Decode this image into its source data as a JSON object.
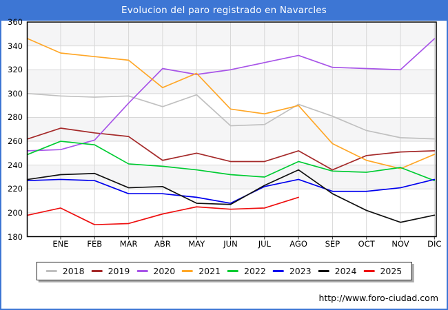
{
  "title": "Evolucion del paro registrado en Navarcles",
  "watermark": "http://www.foro-ciudad.com",
  "colors": {
    "titlebar": "#3d76d4",
    "frame_border": "#3d76d4",
    "grid": "#d8d8d8",
    "band": "#f5f5f6",
    "plot_border": "#000000"
  },
  "chart_data": {
    "type": "line",
    "title": "Evolucion del paro registrado en Navarcles",
    "xlabel": "",
    "ylabel": "",
    "ylim": [
      180,
      360
    ],
    "y_ticks": [
      360,
      340,
      320,
      300,
      280,
      260,
      240,
      220,
      200,
      180
    ],
    "x_labels": [
      "ENE",
      "FEB",
      "MAR",
      "ABR",
      "MAY",
      "JUN",
      "JUL",
      "AGO",
      "SEP",
      "OCT",
      "NOV",
      "DIC"
    ],
    "note": "Each series has 13 points: the first is the previous December value plotted on the left axis, followed by ENE..DIC.",
    "grid": true,
    "legend_position": "bottom",
    "series": [
      {
        "name": "2018",
        "color": "#c0c0c0",
        "values": [
          300,
          298,
          297,
          298,
          289,
          299,
          273,
          274,
          291,
          281,
          269,
          263,
          262
        ]
      },
      {
        "name": "2019",
        "color": "#a52a2a",
        "values": [
          262,
          271,
          267,
          264,
          244,
          250,
          243,
          243,
          252,
          236,
          248,
          251,
          252
        ]
      },
      {
        "name": "2020",
        "color": "#a855e8",
        "values": [
          252,
          253,
          261,
          292,
          321,
          316,
          320,
          326,
          332,
          322,
          321,
          320,
          346
        ]
      },
      {
        "name": "2021",
        "color": "#ffa728",
        "values": [
          346,
          334,
          331,
          328,
          305,
          317,
          287,
          283,
          290,
          258,
          244,
          237,
          249
        ]
      },
      {
        "name": "2022",
        "color": "#00cc33",
        "values": [
          249,
          260,
          257,
          241,
          239,
          236,
          232,
          230,
          243,
          235,
          234,
          238,
          227
        ]
      },
      {
        "name": "2023",
        "color": "#0000ee",
        "values": [
          227,
          228,
          227,
          216,
          216,
          213,
          208,
          222,
          228,
          218,
          218,
          221,
          228
        ]
      },
      {
        "name": "2024",
        "color": "#111111",
        "values": [
          228,
          232,
          233,
          221,
          222,
          208,
          207,
          223,
          236,
          216,
          202,
          192,
          198
        ]
      },
      {
        "name": "2025",
        "color": "#ee1111",
        "values": [
          198,
          204,
          190,
          191,
          199,
          205,
          203,
          204,
          213,
          null,
          null,
          null,
          null
        ]
      }
    ]
  }
}
